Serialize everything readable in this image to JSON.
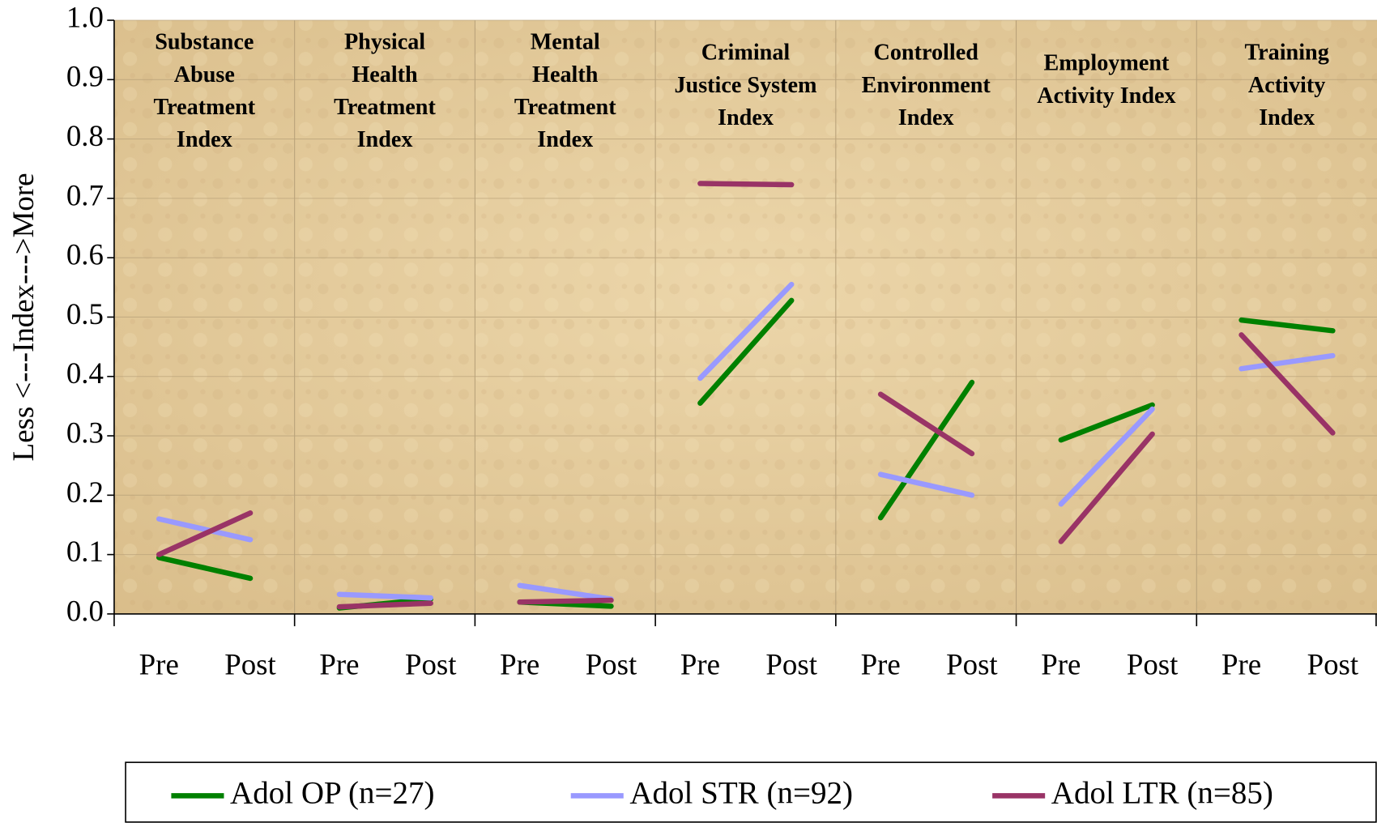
{
  "chart_data": {
    "type": "line",
    "ylabel": "Less <---Index--->More",
    "groups": [
      [
        "Substance",
        "Abuse",
        "Treatment",
        "Index"
      ],
      [
        "Physical",
        "Health",
        "Treatment",
        "Index"
      ],
      [
        "Mental",
        "Health",
        "Treatment",
        "Index"
      ],
      [
        "Criminal",
        "Justice System",
        "Index"
      ],
      [
        "Controlled",
        "Environment",
        "Index"
      ],
      [
        "Employment",
        "Activity Index"
      ],
      [
        "Training",
        "Activity",
        "Index"
      ]
    ],
    "categories": [
      "Pre",
      "Post",
      "Pre",
      "Post",
      "Pre",
      "Post",
      "Pre",
      "Post",
      "Pre",
      "Post",
      "Pre",
      "Post",
      "Pre",
      "Post"
    ],
    "series": [
      {
        "name": "Adol OP (n=27)",
        "color": "#008000",
        "values": [
          0.095,
          0.06,
          0.01,
          0.025,
          0.02,
          0.013,
          0.355,
          0.528,
          0.162,
          0.39,
          0.293,
          0.352,
          0.495,
          0.477
        ]
      },
      {
        "name": "Adol STR (n=92)",
        "color": "#9999ff",
        "values": [
          0.16,
          0.125,
          0.033,
          0.027,
          0.048,
          0.025,
          0.397,
          0.555,
          0.235,
          0.2,
          0.185,
          0.345,
          0.413,
          0.435
        ]
      },
      {
        "name": "Adol LTR (n=85)",
        "color": "#993366",
        "values": [
          0.1,
          0.17,
          0.012,
          0.018,
          0.02,
          0.023,
          0.725,
          0.723,
          0.37,
          0.27,
          0.122,
          0.303,
          0.47,
          0.305
        ]
      }
    ],
    "ylim": [
      0,
      1
    ],
    "yticks": [
      {
        "value": 0,
        "label": "0.0"
      },
      {
        "value": 0.1,
        "label": "0.1"
      },
      {
        "value": 0.2,
        "label": "0.2"
      },
      {
        "value": 0.3,
        "label": "0.3"
      },
      {
        "value": 0.4,
        "label": "0.4"
      },
      {
        "value": 0.5,
        "label": "0.5"
      },
      {
        "value": 0.6,
        "label": "0.6"
      },
      {
        "value": 0.7,
        "label": "0.7"
      },
      {
        "value": 0.8,
        "label": "0.8"
      },
      {
        "value": 0.9,
        "label": "0.9"
      },
      {
        "value": 1,
        "label": "1.0"
      }
    ],
    "grid": true,
    "legend": "bottom"
  }
}
